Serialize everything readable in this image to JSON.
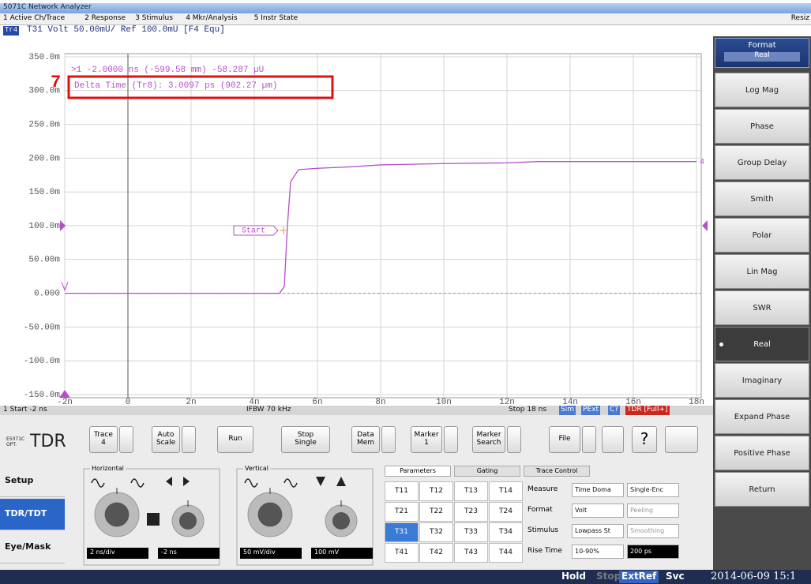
{
  "window_title": "5071C Network Analyzer",
  "menu": [
    "1 Active Ch/Trace",
    "2 Response",
    "3 Stimulus",
    "4 Mkr/Analysis",
    "5 Instr State",
    "Resiz"
  ],
  "trace_header": {
    "badge": "Tr4",
    "text": "T31 Volt 50.00mU/ Ref 100.0mU [F4 Equ]"
  },
  "chart_data": {
    "type": "line",
    "xlim": [
      -2e-09,
      1.8e-08
    ],
    "xticks": [
      {
        "value": -2e-09,
        "label": "-2n"
      },
      0,
      {
        "value": 2e-09,
        "label": "2n"
      },
      {
        "value": 4e-09,
        "label": "4n"
      },
      {
        "value": 6e-09,
        "label": "6n"
      },
      {
        "value": 8e-09,
        "label": "8n"
      },
      {
        "value": 1e-08,
        "label": "10n"
      },
      {
        "value": 1.2e-08,
        "label": "12n"
      },
      {
        "value": 1.4e-08,
        "label": "14n"
      },
      {
        "value": 1.6e-08,
        "label": "16n"
      },
      {
        "value": 1.8e-08,
        "label": "18n"
      }
    ],
    "ylim": [
      -0.15,
      0.35
    ],
    "yticks": [
      {
        "value": 0.35,
        "label": "350.0m"
      },
      {
        "value": 0.3,
        "label": "300.0m"
      },
      {
        "value": 0.25,
        "label": "250.0m"
      },
      {
        "value": 0.2,
        "label": "200.0m"
      },
      {
        "value": 0.15,
        "label": "150.0m"
      },
      {
        "value": 0.1,
        "label": "100.0m"
      },
      {
        "value": 0.05,
        "label": "50.00m"
      },
      {
        "value": 0,
        "label": "0.000"
      },
      {
        "value": -0.05,
        "label": "-50.00m"
      },
      {
        "value": -0.1,
        "label": "-100.0m"
      },
      {
        "value": -0.15,
        "label": "-150.0m"
      }
    ],
    "grid": true,
    "series": [
      {
        "name": "4",
        "color": "#b44fc8",
        "x": [
          -2e-09,
          4.8e-09,
          4.95e-09,
          5.05e-09,
          5.15e-09,
          5.4e-09,
          6e-09,
          7e-09,
          8e-09,
          1e-08,
          1.2e-08,
          1.3e-08,
          1.4e-08,
          1.8e-08
        ],
        "values": [
          0,
          0,
          0.01,
          0.1,
          0.165,
          0.183,
          0.185,
          0.187,
          0.19,
          0.192,
          0.193,
          0.195,
          0.195,
          0.195
        ]
      }
    ],
    "annotations": {
      "marker_readout": ">1 -2.0000 ns (-599.58 mm) -58.287 µU",
      "delta": "Delta Time (Tr8):  3.0097 ps (902.27 µm)",
      "callout": "7",
      "start": "Start"
    }
  },
  "footer": {
    "start": "1 Start -2 ns",
    "ifbw": "IFBW 70 kHz",
    "stop": "Stop 18 ns",
    "flags": [
      "Sim",
      "PExt",
      "C?",
      "TDR [Full+]"
    ]
  },
  "softkeys": {
    "header": "Format",
    "current": "Real",
    "buttons": [
      "Log Mag",
      "Phase",
      "Group Delay",
      "Smith",
      "Polar",
      "Lin Mag",
      "SWR",
      "Real",
      "Imaginary",
      "Expand Phase",
      "Positive Phase",
      "Return"
    ]
  },
  "tdr": {
    "logo_small": "E5071C OPT.",
    "logo": "TDR",
    "toolbar": [
      "Trace\n4",
      "Auto\nScale",
      "Run",
      "Stop\nSingle",
      "Data\nMem",
      "Marker\n1",
      "Marker\nSearch",
      "File"
    ],
    "help": "?",
    "tabs": [
      "Setup",
      "TDR/TDT",
      "Eye/Mask"
    ],
    "horizontal": {
      "title": "Horizontal",
      "fields": [
        "2 ns/div",
        "-2 ns"
      ]
    },
    "vertical": {
      "title": "Vertical",
      "fields": [
        "50 mV/div",
        "100 mV"
      ]
    },
    "param_tabs": [
      "Parameters",
      "Gating",
      "Trace Control"
    ],
    "param_grid": [
      [
        "T11",
        "T12",
        "T13",
        "T14"
      ],
      [
        "T21",
        "T22",
        "T23",
        "T24"
      ],
      [
        "T31",
        "T32",
        "T33",
        "T34"
      ],
      [
        "T41",
        "T42",
        "T43",
        "T44"
      ]
    ],
    "settings": [
      {
        "label": "Measure",
        "values": [
          "Time Doma",
          "Single-Enc"
        ]
      },
      {
        "label": "Format",
        "values": [
          "Volt",
          "Peeling"
        ]
      },
      {
        "label": "Stimulus",
        "values": [
          "Lowpass St",
          "Smoothing"
        ]
      },
      {
        "label": "Rise Time",
        "values": [
          "10-90%",
          "200 ps"
        ]
      }
    ]
  },
  "status": [
    "Hold",
    "Stop",
    "ExtRef",
    "Svc",
    "2014-06-09 15:1"
  ]
}
